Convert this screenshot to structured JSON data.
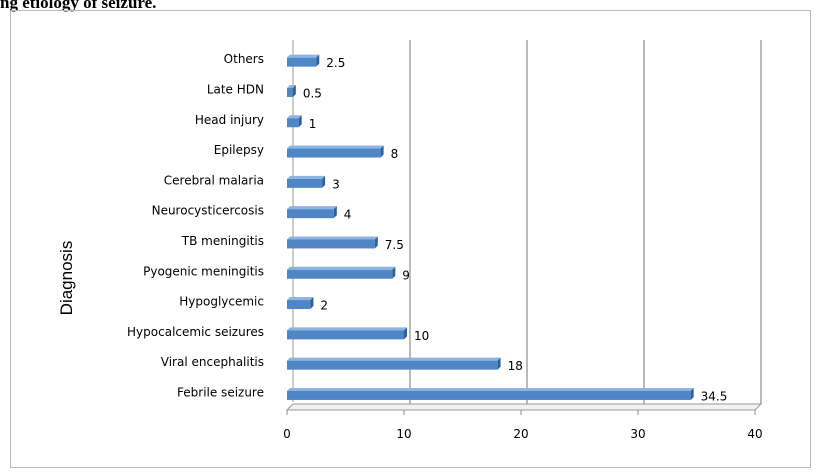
{
  "page": {
    "heading": "ng etiology of seizure."
  },
  "chart_data": {
    "type": "bar",
    "orientation": "horizontal",
    "title": "",
    "xlabel": "",
    "ylabel": "Diagnosis",
    "categories": [
      "Febrile seizure",
      "Viral encephalitis",
      "Hypocalcemic seizures",
      "Hypoglycemic",
      "Pyogenic meningitis",
      "TB meningitis",
      "Neurocysticercosis",
      "Cerebral malaria",
      "Epilepsy",
      "Head injury",
      "Late HDN",
      "Others"
    ],
    "values": [
      34.5,
      18,
      10,
      2,
      9,
      7.5,
      4,
      3,
      8,
      1,
      0.5,
      2.5
    ],
    "value_labels": [
      "34.5",
      "18",
      "10",
      "2",
      "9",
      "7.5",
      "4",
      "3",
      "8",
      "1",
      "0.5",
      "2.5"
    ],
    "xlim": [
      0,
      40
    ],
    "xticks": [
      "0",
      "10",
      "20",
      "30",
      "40"
    ],
    "grid": "vertical major gridlines",
    "legend": "none",
    "bar_color": "#4f86c6",
    "bar_top_color": "#8db4e2",
    "bar_end_color": "#2f5f98",
    "style": "3-D clustered bar"
  }
}
